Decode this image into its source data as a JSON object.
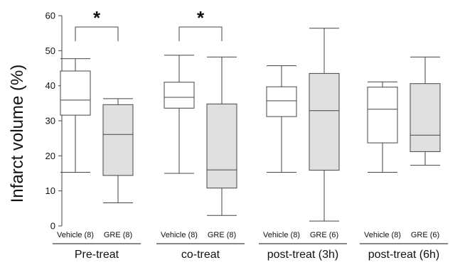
{
  "chart_data": {
    "type": "box",
    "ylabel": "Infarct volume (%)",
    "ylim": [
      0,
      60
    ],
    "yticks": [
      "0",
      "10",
      "20",
      "30",
      "40",
      "50",
      "60"
    ],
    "groups": [
      {
        "label": "Pre-treat",
        "boxes": [
          {
            "label": "Vehicle (8)",
            "min": 15.3,
            "q1": 31.6,
            "median": 35.9,
            "q3": 44.2,
            "max": 47.7,
            "fill": "#ffffff"
          },
          {
            "label": "GRE (8)",
            "min": 6.6,
            "q1": 14.4,
            "median": 26.1,
            "q3": 34.6,
            "max": 36.3,
            "fill": "#e0e0e0"
          }
        ],
        "significance": "*"
      },
      {
        "label": "co-treat",
        "boxes": [
          {
            "label": "Vehicle (8)",
            "min": 15.0,
            "q1": 33.6,
            "median": 36.7,
            "q3": 41.0,
            "max": 48.7,
            "fill": "#ffffff"
          },
          {
            "label": "GRE (8)",
            "min": 3.0,
            "q1": 10.8,
            "median": 16.0,
            "q3": 34.8,
            "max": 48.2,
            "fill": "#e0e0e0"
          }
        ],
        "significance": "*"
      },
      {
        "label": "post-treat (3h)",
        "boxes": [
          {
            "label": "Vehicle (8)",
            "min": 15.3,
            "q1": 31.2,
            "median": 35.7,
            "q3": 39.7,
            "max": 45.7,
            "fill": "#ffffff"
          },
          {
            "label": "GRE (6)",
            "min": 1.4,
            "q1": 15.9,
            "median": 32.9,
            "q3": 43.5,
            "max": 56.4,
            "fill": "#e0e0e0"
          }
        ],
        "significance": ""
      },
      {
        "label": "post-treat (6h)",
        "boxes": [
          {
            "label": "Vehicle (8)",
            "min": 15.3,
            "q1": 23.7,
            "median": 33.3,
            "q3": 39.6,
            "max": 41.1,
            "fill": "#ffffff"
          },
          {
            "label": "GRE (6)",
            "min": 17.3,
            "q1": 21.2,
            "median": 25.9,
            "q3": 40.6,
            "max": 48.2,
            "fill": "#e0e0e0"
          }
        ],
        "significance": ""
      }
    ],
    "grid": false,
    "legend": "none",
    "colors": {
      "line": "#444444",
      "vehicle_fill": "#ffffff",
      "gre_fill": "#e0e0e0"
    }
  }
}
